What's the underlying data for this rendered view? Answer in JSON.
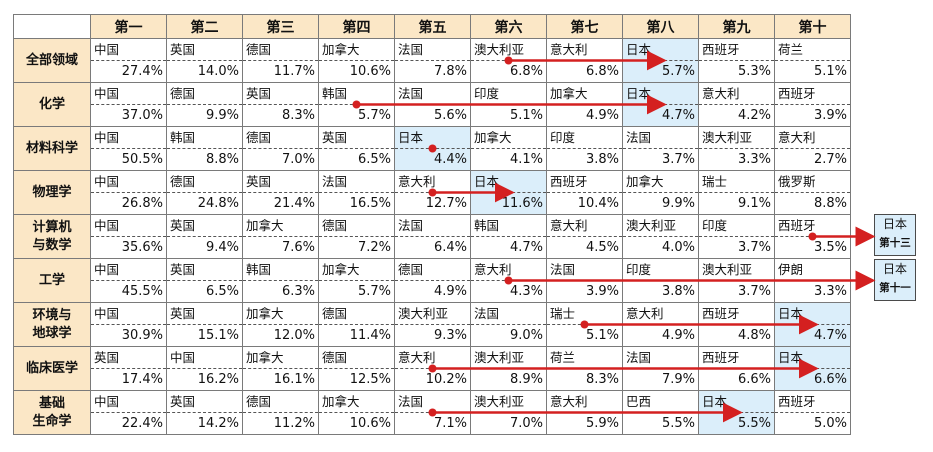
{
  "ranks": [
    "第一",
    "第二",
    "第三",
    "第四",
    "第五",
    "第六",
    "第七",
    "第八",
    "第九",
    "第十"
  ],
  "fields": [
    {
      "label": "全部领域",
      "cells": [
        {
          "c": "中国",
          "v": "27.4%"
        },
        {
          "c": "英国",
          "v": "14.0%"
        },
        {
          "c": "德国",
          "v": "11.7%"
        },
        {
          "c": "加拿大",
          "v": "10.6%"
        },
        {
          "c": "法国",
          "v": "7.8%"
        },
        {
          "c": "澳大利亚",
          "v": "6.8%"
        },
        {
          "c": "意大利",
          "v": "6.8%"
        },
        {
          "c": "日本",
          "v": "5.7%"
        },
        {
          "c": "西班牙",
          "v": "5.3%"
        },
        {
          "c": "荷兰",
          "v": "5.1%"
        }
      ]
    },
    {
      "label": "化学",
      "cells": [
        {
          "c": "中国",
          "v": "37.0%"
        },
        {
          "c": "德国",
          "v": "9.9%"
        },
        {
          "c": "英国",
          "v": "8.3%"
        },
        {
          "c": "韩国",
          "v": "5.7%"
        },
        {
          "c": "法国",
          "v": "5.6%"
        },
        {
          "c": "印度",
          "v": "5.1%"
        },
        {
          "c": "加拿大",
          "v": "4.9%"
        },
        {
          "c": "日本",
          "v": "4.7%"
        },
        {
          "c": "意大利",
          "v": "4.2%"
        },
        {
          "c": "西班牙",
          "v": "3.9%"
        }
      ]
    },
    {
      "label": "材料科学",
      "cells": [
        {
          "c": "中国",
          "v": "50.5%"
        },
        {
          "c": "韩国",
          "v": "8.8%"
        },
        {
          "c": "德国",
          "v": "7.0%"
        },
        {
          "c": "英国",
          "v": "6.5%"
        },
        {
          "c": "日本",
          "v": "4.4%"
        },
        {
          "c": "加拿大",
          "v": "4.1%"
        },
        {
          "c": "印度",
          "v": "3.8%"
        },
        {
          "c": "法国",
          "v": "3.7%"
        },
        {
          "c": "澳大利亚",
          "v": "3.3%"
        },
        {
          "c": "意大利",
          "v": "2.7%"
        }
      ]
    },
    {
      "label": "物理学",
      "cells": [
        {
          "c": "中国",
          "v": "26.8%"
        },
        {
          "c": "德国",
          "v": "24.8%"
        },
        {
          "c": "英国",
          "v": "21.4%"
        },
        {
          "c": "法国",
          "v": "16.5%"
        },
        {
          "c": "意大利",
          "v": "12.7%"
        },
        {
          "c": "日本",
          "v": "11.6%"
        },
        {
          "c": "西班牙",
          "v": "10.4%"
        },
        {
          "c": "加拿大",
          "v": "9.9%"
        },
        {
          "c": "瑞士",
          "v": "9.1%"
        },
        {
          "c": "俄罗斯",
          "v": "8.8%"
        }
      ]
    },
    {
      "label": "计算机\n与数学",
      "cells": [
        {
          "c": "中国",
          "v": "35.6%"
        },
        {
          "c": "英国",
          "v": "9.4%"
        },
        {
          "c": "加拿大",
          "v": "7.6%"
        },
        {
          "c": "德国",
          "v": "7.2%"
        },
        {
          "c": "法国",
          "v": "6.4%"
        },
        {
          "c": "韩国",
          "v": "4.7%"
        },
        {
          "c": "意大利",
          "v": "4.5%"
        },
        {
          "c": "澳大利亚",
          "v": "4.0%"
        },
        {
          "c": "印度",
          "v": "3.7%"
        },
        {
          "c": "西班牙",
          "v": "3.5%"
        }
      ]
    },
    {
      "label": "工学",
      "cells": [
        {
          "c": "中国",
          "v": "45.5%"
        },
        {
          "c": "英国",
          "v": "6.5%"
        },
        {
          "c": "韩国",
          "v": "6.3%"
        },
        {
          "c": "加拿大",
          "v": "5.7%"
        },
        {
          "c": "德国",
          "v": "4.9%"
        },
        {
          "c": "意大利",
          "v": "4.3%"
        },
        {
          "c": "法国",
          "v": "3.9%"
        },
        {
          "c": "印度",
          "v": "3.8%"
        },
        {
          "c": "澳大利亚",
          "v": "3.7%"
        },
        {
          "c": "伊朗",
          "v": "3.3%"
        }
      ]
    },
    {
      "label": "环境与\n地球学",
      "cells": [
        {
          "c": "中国",
          "v": "30.9%"
        },
        {
          "c": "英国",
          "v": "15.1%"
        },
        {
          "c": "加拿大",
          "v": "12.0%"
        },
        {
          "c": "德国",
          "v": "11.4%"
        },
        {
          "c": "澳大利亚",
          "v": "9.3%"
        },
        {
          "c": "法国",
          "v": "9.0%"
        },
        {
          "c": "瑞士",
          "v": "5.1%"
        },
        {
          "c": "意大利",
          "v": "4.9%"
        },
        {
          "c": "西班牙",
          "v": "4.8%"
        },
        {
          "c": "日本",
          "v": "4.7%"
        }
      ]
    },
    {
      "label": "临床医学",
      "cells": [
        {
          "c": "英国",
          "v": "17.4%"
        },
        {
          "c": "中国",
          "v": "16.2%"
        },
        {
          "c": "加拿大",
          "v": "16.1%"
        },
        {
          "c": "德国",
          "v": "12.5%"
        },
        {
          "c": "意大利",
          "v": "10.2%"
        },
        {
          "c": "澳大利亚",
          "v": "8.9%"
        },
        {
          "c": "荷兰",
          "v": "8.3%"
        },
        {
          "c": "法国",
          "v": "7.9%"
        },
        {
          "c": "西班牙",
          "v": "6.6%"
        },
        {
          "c": "日本",
          "v": "6.6%"
        }
      ]
    },
    {
      "label": "基础\n生命学",
      "cells": [
        {
          "c": "中国",
          "v": "22.4%"
        },
        {
          "c": "英国",
          "v": "14.2%"
        },
        {
          "c": "德国",
          "v": "11.2%"
        },
        {
          "c": "加拿大",
          "v": "10.6%"
        },
        {
          "c": "法国",
          "v": "7.1%"
        },
        {
          "c": "澳大利亚",
          "v": "7.0%"
        },
        {
          "c": "意大利",
          "v": "5.9%"
        },
        {
          "c": "巴西",
          "v": "5.5%"
        },
        {
          "c": "日本",
          "v": "5.5%"
        },
        {
          "c": "西班牙",
          "v": "5.0%"
        }
      ]
    }
  ],
  "outside": [
    {
      "country": "日本",
      "rank": "第十三"
    },
    {
      "country": "日本",
      "rank": "第十一"
    }
  ],
  "colors": {
    "header_bg": "#fbe7c6",
    "japan_bg": "#dbeefa",
    "arrow": "#d42020",
    "border": "#7a7a7a"
  }
}
